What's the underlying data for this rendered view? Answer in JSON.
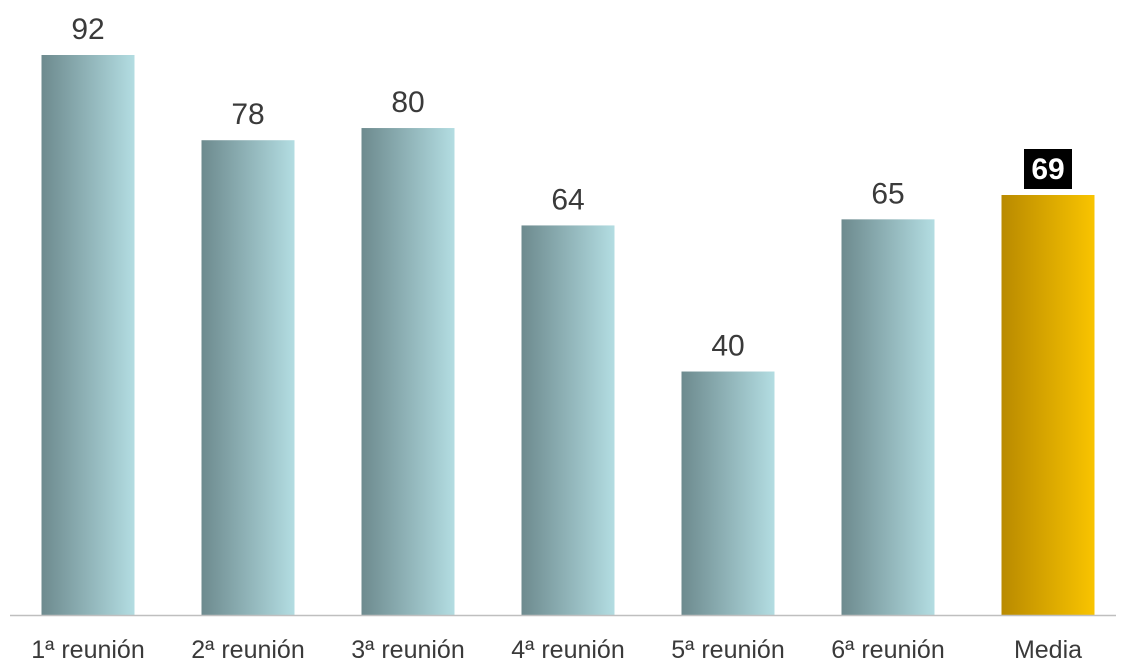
{
  "chart_data": {
    "type": "bar",
    "categories": [
      "1ª reunión",
      "2ª reunión",
      "3ª reunión",
      "4ª reunión",
      "5ª reunión",
      "6ª reunión",
      "Media"
    ],
    "values": [
      92,
      78,
      80,
      64,
      40,
      65,
      69
    ],
    "data_labels": [
      "92",
      "78",
      "80",
      "64",
      "40",
      "65",
      "69"
    ],
    "highlighted_category": "Media",
    "ylim": [
      0,
      100
    ],
    "grid": false,
    "legend": "none",
    "title": "",
    "xlabel": "",
    "ylabel": ""
  },
  "colors": {
    "bar_gradient_start": "#6d8a8e",
    "bar_gradient_end": "#b3dde2",
    "highlight_gradient_start": "#b98a00",
    "highlight_gradient_end": "#f9c400",
    "highlight_label_background": "#000000",
    "highlight_label_text": "#ffffff",
    "axis_line": "#bfbfbf",
    "text": "#3a3a3a"
  }
}
